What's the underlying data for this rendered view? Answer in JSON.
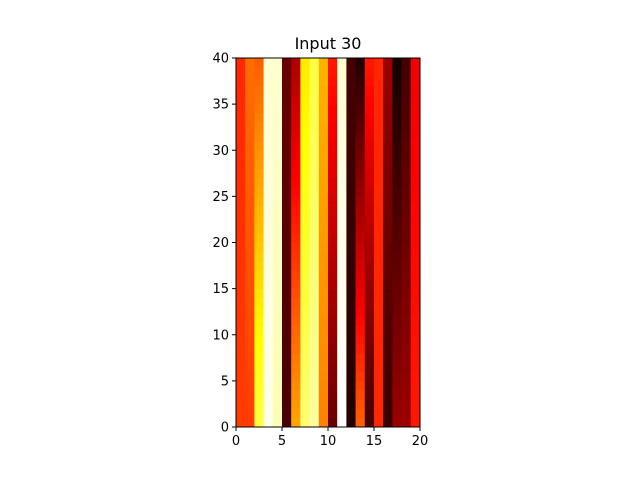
{
  "chart_data": {
    "type": "heatmap",
    "title": "Input 30",
    "xlabel": "",
    "ylabel": "",
    "xlim": [
      0,
      20
    ],
    "ylim": [
      0,
      40
    ],
    "xticks": [
      "0",
      "5",
      "10",
      "15",
      "20"
    ],
    "yticks": [
      "0",
      "5",
      "10",
      "15",
      "20",
      "25",
      "30",
      "35",
      "40"
    ],
    "grid": false,
    "colormap": "hot",
    "value_range": [
      0,
      1
    ],
    "n_columns": 20,
    "n_rows": 40,
    "column_values_bottom": [
      0.45,
      0.45,
      0.8,
      0.98,
      0.92,
      0.1,
      0.6,
      0.85,
      0.9,
      0.55,
      0.15,
      1.0,
      0.05,
      0.5,
      0.1,
      0.42,
      0.08,
      0.22,
      0.22,
      0.4
    ],
    "column_values_top": [
      0.42,
      0.52,
      0.5,
      0.95,
      0.95,
      0.15,
      0.25,
      0.7,
      0.8,
      0.62,
      0.4,
      0.95,
      0.1,
      0.05,
      0.4,
      0.42,
      0.22,
      0.03,
      0.1,
      0.35
    ]
  }
}
